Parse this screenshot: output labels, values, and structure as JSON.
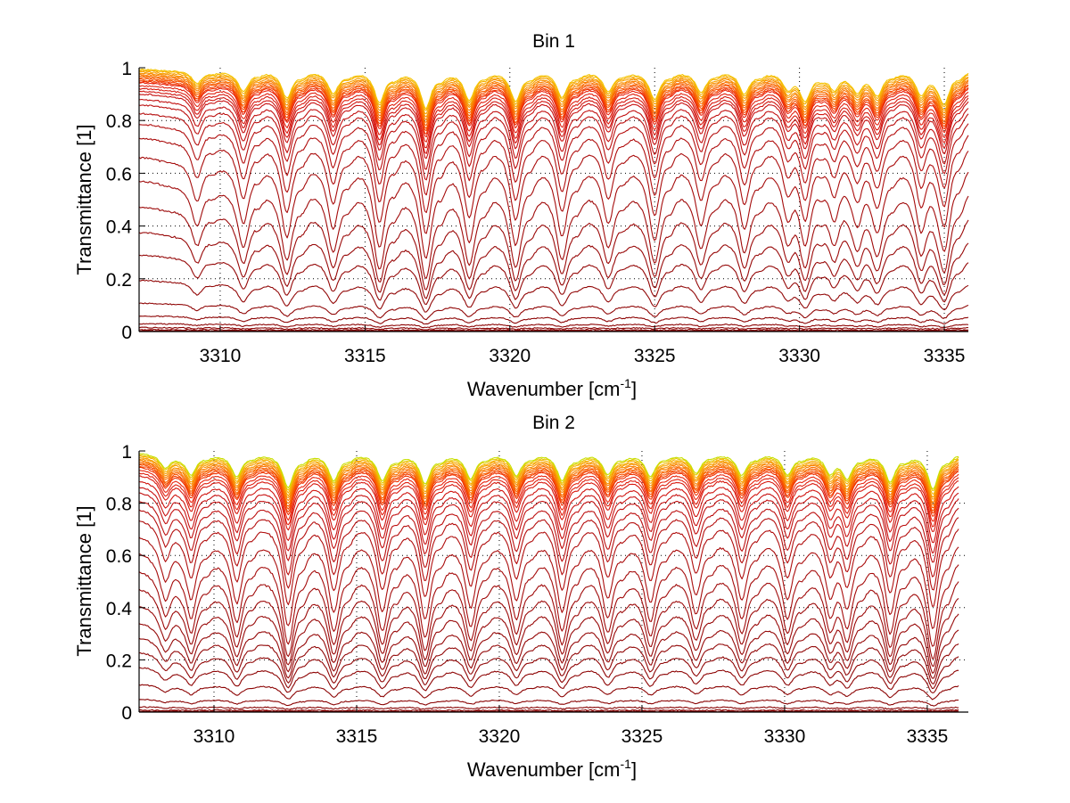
{
  "chart_data": [
    {
      "type": "line",
      "title": "Bin 1",
      "xlabel": "Wavenumber [cm",
      "xlabel_sup": "-1",
      "xlabel_close": "]",
      "ylabel": "Transmittance [1]",
      "xlim": [
        3307.2,
        3335.83
      ],
      "ylim": [
        0,
        1
      ],
      "grid": true,
      "x_ticks": [
        3310,
        3315,
        3320,
        3325,
        3330,
        3335
      ],
      "x_tick_labels": [
        "3310",
        "3315",
        "3320",
        "3325",
        "3330",
        "3335"
      ],
      "y_ticks": [
        0,
        0.2,
        0.4,
        0.6,
        0.8,
        1
      ],
      "y_tick_labels": [
        "0",
        "0.2",
        "0.4",
        "0.6",
        "0.8",
        "1"
      ],
      "x_range_data": [
        3307.2,
        3335.83
      ],
      "line_centers": [
        3309.2,
        3310.8,
        3312.3,
        3313.9,
        3315.5,
        3317.1,
        3318.6,
        3320.2,
        3321.8,
        3323.4,
        3325.0,
        3326.6,
        3328.1,
        3329.6,
        3330.2,
        3331.2,
        3332.0,
        3332.7,
        3334.2,
        3335.0
      ],
      "line_strengths": [
        0.35,
        0.55,
        0.7,
        0.6,
        0.85,
        1.0,
        0.75,
        0.8,
        0.7,
        0.55,
        0.75,
        0.55,
        0.6,
        0.45,
        0.7,
        0.45,
        0.5,
        0.55,
        0.6,
        0.85
      ],
      "series_baselines": [
        0.999,
        0.995,
        0.99,
        0.985,
        0.98,
        0.975,
        0.97,
        0.965,
        0.96,
        0.955,
        0.95,
        0.94,
        0.93,
        0.92,
        0.91,
        0.89,
        0.87,
        0.84,
        0.8,
        0.75,
        0.68,
        0.59,
        0.49,
        0.39,
        0.3,
        0.2,
        0.11,
        0.06,
        0.03,
        0.015,
        0.007,
        0.003,
        0.001
      ],
      "series_colors": [
        "#f5c400",
        "#f6b000",
        "#f7a000",
        "#f89000",
        "#f98000",
        "#f97000",
        "#f86000",
        "#f65000",
        "#f34000",
        "#ee3000",
        "#e82510",
        "#e02010",
        "#d81a10",
        "#d01510",
        "#c81212",
        "#c21010",
        "#bc1010",
        "#b50f0f",
        "#b00e0e",
        "#aa0d0d",
        "#a50c0c",
        "#a00b0b",
        "#9c0a0a",
        "#980909",
        "#950808",
        "#920808",
        "#900707",
        "#8e0606",
        "#8c0505",
        "#8a0404",
        "#880303",
        "#860202",
        "#840101"
      ]
    },
    {
      "type": "line",
      "title": "Bin 2",
      "xlabel": "Wavenumber [cm",
      "xlabel_sup": "-1",
      "xlabel_close": "]",
      "ylabel": "Transmittance [1]",
      "xlim": [
        3307.375,
        3336.44
      ],
      "ylim": [
        0,
        1
      ],
      "grid": true,
      "x_ticks": [
        3310,
        3315,
        3320,
        3325,
        3330,
        3335
      ],
      "x_tick_labels": [
        "3310",
        "3315",
        "3320",
        "3325",
        "3330",
        "3335"
      ],
      "y_ticks": [
        0,
        0.2,
        0.4,
        0.6,
        0.8,
        1
      ],
      "y_tick_labels": [
        "0",
        "0.2",
        "0.4",
        "0.6",
        "0.8",
        "1"
      ],
      "x_range_data": [
        3307.375,
        3336.1
      ],
      "line_centers": [
        3308.3,
        3309.2,
        3310.8,
        3312.6,
        3314.2,
        3315.9,
        3317.4,
        3319.0,
        3320.6,
        3322.2,
        3323.8,
        3325.3,
        3326.9,
        3328.5,
        3330.1,
        3331.6,
        3332.2,
        3333.7,
        3335.2
      ],
      "line_strengths": [
        0.35,
        0.55,
        0.6,
        0.9,
        0.7,
        0.7,
        0.8,
        0.65,
        0.55,
        0.7,
        0.55,
        0.6,
        0.5,
        0.55,
        0.55,
        0.5,
        0.55,
        0.75,
        0.95
      ],
      "series_baselines": [
        0.999,
        0.995,
        0.99,
        0.985,
        0.98,
        0.975,
        0.97,
        0.965,
        0.96,
        0.955,
        0.95,
        0.94,
        0.93,
        0.92,
        0.9,
        0.88,
        0.86,
        0.83,
        0.8,
        0.76,
        0.7,
        0.64,
        0.57,
        0.5,
        0.43,
        0.36,
        0.3,
        0.24,
        0.18,
        0.11,
        0.05,
        0.02,
        0.008,
        0.003,
        0.001
      ],
      "series_colors": [
        "#c8e000",
        "#e6c800",
        "#f6b000",
        "#f7a000",
        "#f89000",
        "#f98000",
        "#f97000",
        "#f86000",
        "#f65000",
        "#f34000",
        "#ee3000",
        "#e82510",
        "#e02010",
        "#d81a10",
        "#d01510",
        "#c81212",
        "#c21010",
        "#bc1010",
        "#b50f0f",
        "#b00e0e",
        "#aa0d0d",
        "#a50c0c",
        "#a00b0b",
        "#9c0a0a",
        "#980909",
        "#950808",
        "#920808",
        "#900707",
        "#8e0606",
        "#8c0505",
        "#8a0404",
        "#880303",
        "#860202",
        "#850101",
        "#840101"
      ]
    }
  ]
}
